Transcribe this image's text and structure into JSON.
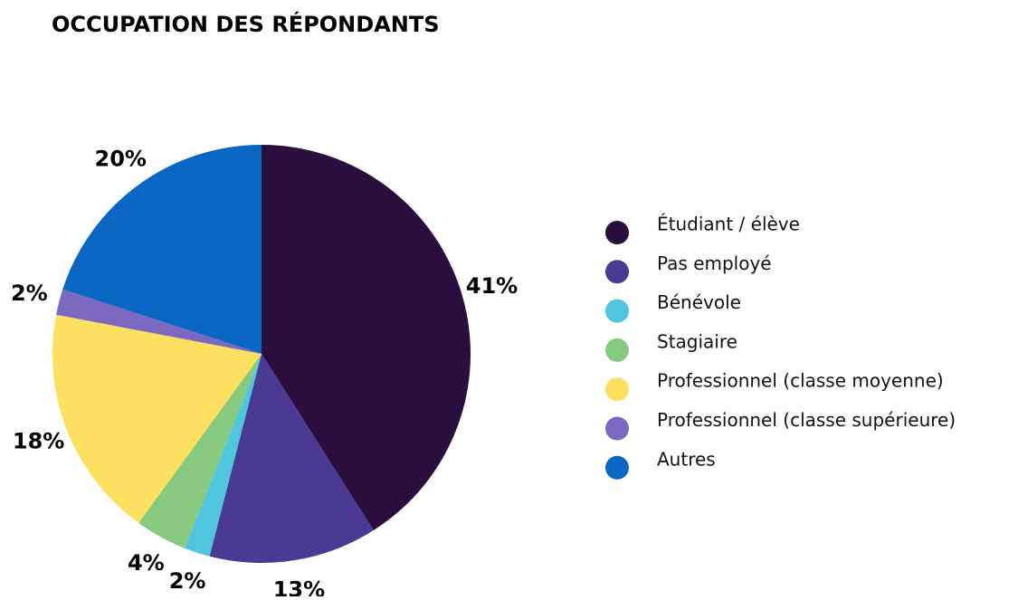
{
  "chart_data": {
    "type": "pie",
    "title": "OCCUPATION DES RÉPONDANTS",
    "categories": [
      "Étudiant / élève",
      "Pas employé",
      "Bénévole",
      "Stagiaire",
      "Professionnel (classe moyenne)",
      "Professionnel (classe supérieure)",
      "Autres"
    ],
    "values": [
      41,
      13,
      2,
      4,
      18,
      2,
      20
    ],
    "value_labels": [
      "41%",
      "13%",
      "2%",
      "4%",
      "18%",
      "2%",
      "20%"
    ],
    "colors": [
      "#2a0f3e",
      "#4b3a94",
      "#4fc5de",
      "#86c97f",
      "#fde060",
      "#7b68c0",
      "#0966c3"
    ],
    "legend": "right"
  }
}
